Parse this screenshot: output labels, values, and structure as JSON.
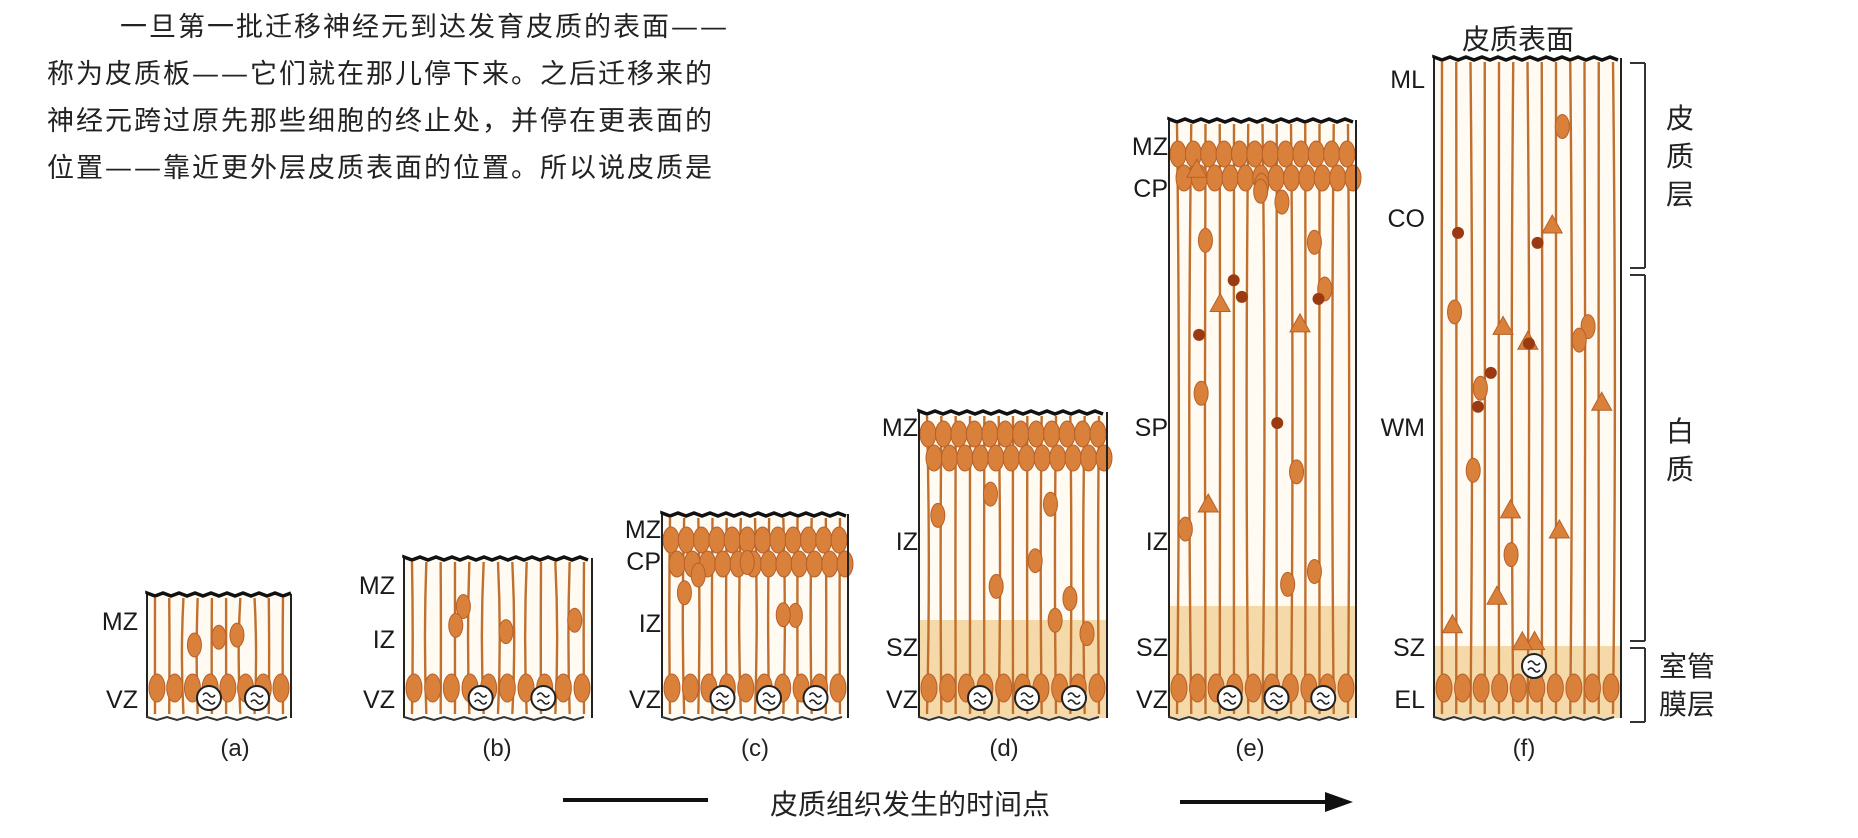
{
  "paragraph": [
    "一旦第一批迁移神经元到达发育皮质的表面——",
    "称为皮质板——它们就在那儿停下来。之后迁移来的",
    "神经元跨过原先那些细胞的终止处，并停在更表面的",
    "位置——靠近更外层皮质表面的位置。所以说皮质是"
  ],
  "panels": [
    {
      "caption": "(a)",
      "labels": [
        "MZ",
        "VZ"
      ]
    },
    {
      "caption": "(b)",
      "labels": [
        "MZ",
        "IZ",
        "VZ"
      ]
    },
    {
      "caption": "(c)",
      "labels": [
        "MZ",
        "CP",
        "IZ",
        "VZ"
      ]
    },
    {
      "caption": "(d)",
      "labels": [
        "MZ",
        "IZ",
        "SZ",
        "VZ"
      ]
    },
    {
      "caption": "(e)",
      "labels": [
        "MZ",
        "CP",
        "SP",
        "IZ",
        "SZ",
        "VZ"
      ]
    },
    {
      "caption": "(f)",
      "labels": [
        "ML",
        "CO",
        "WM",
        "SZ",
        "EL"
      ]
    }
  ],
  "surface_label": "皮质表面",
  "brackets": {
    "cortex": "皮质层",
    "white_matter": "白质",
    "ependymal": "室管膜层"
  },
  "timeline_label": "皮质组织发生的时间点",
  "colors": {
    "cell": "#d9803a",
    "cell_dark": "#b8602a",
    "fiber": "#c0702e",
    "sz_band": "#f6d9a8",
    "dark_cell": "#9a3a12"
  }
}
